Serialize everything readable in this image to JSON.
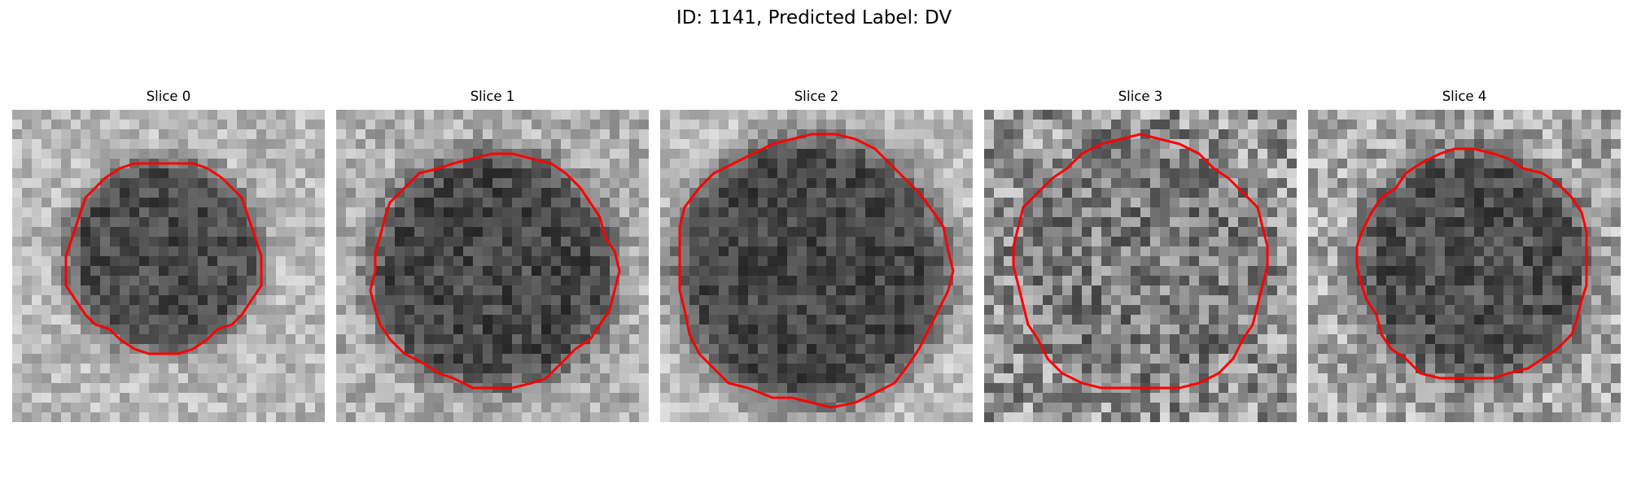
{
  "figure": {
    "title": "ID: 1141, Predicted Label: DV",
    "contour_color": "#ff0000"
  },
  "slices": [
    {
      "title": "Slice 0"
    },
    {
      "title": "Slice 1"
    },
    {
      "title": "Slice 2"
    },
    {
      "title": "Slice 3"
    },
    {
      "title": "Slice 4"
    }
  ]
}
